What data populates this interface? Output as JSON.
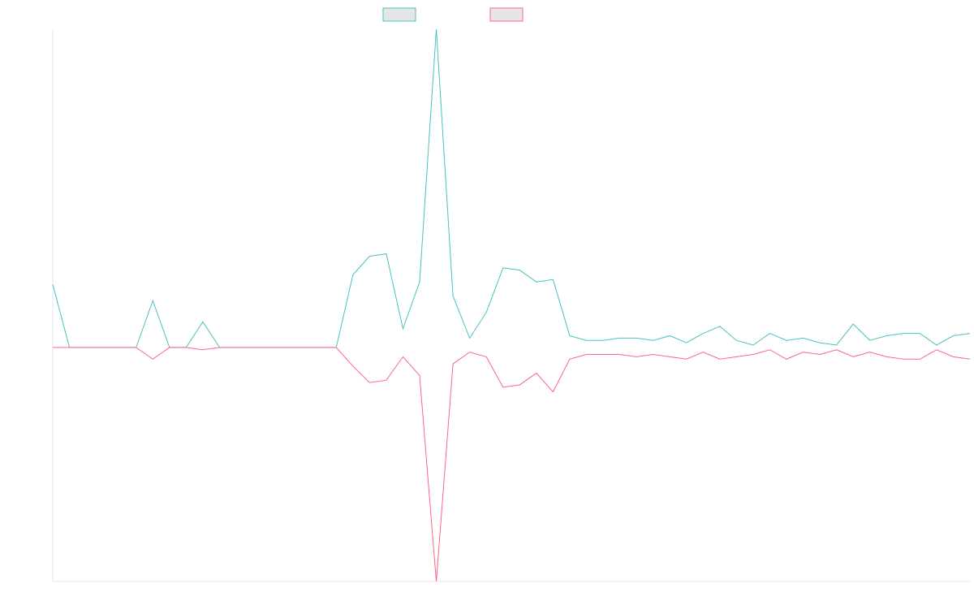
{
  "chart_data": {
    "type": "line",
    "title": "",
    "xlabel": "",
    "ylabel": "",
    "grid": false,
    "legend_position": "top-center",
    "x": [
      0,
      1,
      2,
      3,
      4,
      5,
      6,
      7,
      8,
      9,
      10,
      11,
      12,
      13,
      14,
      15,
      16,
      17,
      18,
      19,
      20,
      21,
      22,
      23,
      24,
      25,
      26,
      27,
      28,
      29,
      30,
      31,
      32,
      33,
      34,
      35,
      36,
      37,
      38,
      39,
      40,
      41,
      42,
      43,
      44,
      45,
      46,
      47,
      48,
      49,
      50,
      51,
      52,
      53,
      54,
      55
    ],
    "xlim": [
      0,
      55
    ],
    "ylim": [
      -100,
      136
    ],
    "series": [
      {
        "name": "",
        "color": "#4bc0c0",
        "values": [
          27,
          0,
          0,
          0,
          0,
          0,
          20,
          0,
          0,
          11,
          0,
          0,
          0,
          0,
          0,
          0,
          0,
          0,
          31,
          39,
          40,
          8,
          28,
          136,
          22,
          4,
          15,
          34,
          33,
          28,
          29,
          5,
          3,
          3,
          4,
          4,
          3,
          5,
          2,
          6,
          9,
          3,
          1,
          6,
          3,
          4,
          2,
          1,
          10,
          3,
          5,
          6,
          6,
          1,
          5,
          6
        ]
      },
      {
        "name": "",
        "color": "#ff6384",
        "values": [
          0,
          0,
          0,
          0,
          0,
          0,
          -5,
          0,
          0,
          -1,
          0,
          0,
          0,
          0,
          0,
          0,
          0,
          0,
          -8,
          -15,
          -14,
          -4,
          -12,
          -100,
          -7,
          -2,
          -4,
          -17,
          -16,
          -11,
          -19,
          -5,
          -3,
          -3,
          -3,
          -4,
          -3,
          -4,
          -5,
          -2,
          -5,
          -4,
          -3,
          -1,
          -5,
          -2,
          -3,
          -1,
          -4,
          -2,
          -4,
          -5,
          -5,
          -1,
          -4,
          -5
        ]
      }
    ]
  }
}
